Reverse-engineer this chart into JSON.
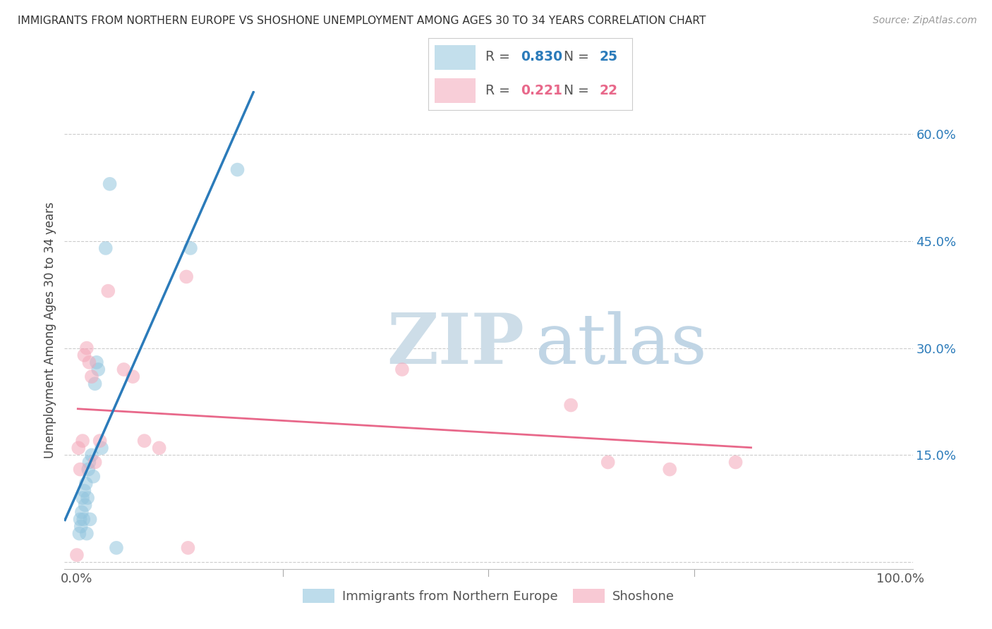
{
  "title": "IMMIGRANTS FROM NORTHERN EUROPE VS SHOSHONE UNEMPLOYMENT AMONG AGES 30 TO 34 YEARS CORRELATION CHART",
  "source": "Source: ZipAtlas.com",
  "ylabel": "Unemployment Among Ages 30 to 34 years",
  "legend_blue_r": "0.830",
  "legend_blue_n": "25",
  "legend_pink_r": "0.221",
  "legend_pink_n": "22",
  "legend_label_blue": "Immigrants from Northern Europe",
  "legend_label_pink": "Shoshone",
  "xlim": [
    -0.015,
    1.015
  ],
  "ylim": [
    -0.01,
    0.66
  ],
  "xtick_vals": [
    0.0,
    0.25,
    0.5,
    0.75,
    1.0
  ],
  "xtick_labels": [
    "0.0%",
    "",
    "",
    "",
    "100.0%"
  ],
  "ytick_vals": [
    0.0,
    0.15,
    0.3,
    0.45,
    0.6
  ],
  "ytick_labels": [
    "",
    "15.0%",
    "30.0%",
    "45.0%",
    "60.0%"
  ],
  "blue_fill": "#92c5de",
  "pink_fill": "#f4a6b8",
  "blue_line": "#2b7bba",
  "pink_line": "#e8688a",
  "blue_x": [
    0.003,
    0.004,
    0.005,
    0.006,
    0.007,
    0.008,
    0.009,
    0.01,
    0.011,
    0.012,
    0.013,
    0.014,
    0.015,
    0.016,
    0.018,
    0.02,
    0.022,
    0.024,
    0.026,
    0.03,
    0.035,
    0.04,
    0.048,
    0.138,
    0.195
  ],
  "blue_y": [
    0.04,
    0.06,
    0.05,
    0.07,
    0.09,
    0.06,
    0.1,
    0.08,
    0.11,
    0.04,
    0.09,
    0.13,
    0.14,
    0.06,
    0.15,
    0.12,
    0.25,
    0.28,
    0.27,
    0.16,
    0.44,
    0.53,
    0.02,
    0.44,
    0.55
  ],
  "pink_x": [
    0.0,
    0.004,
    0.007,
    0.009,
    0.012,
    0.015,
    0.018,
    0.022,
    0.028,
    0.038,
    0.057,
    0.068,
    0.082,
    0.1,
    0.135,
    0.395,
    0.6,
    0.645,
    0.72,
    0.8,
    0.133,
    0.002
  ],
  "pink_y": [
    0.01,
    0.13,
    0.17,
    0.29,
    0.3,
    0.28,
    0.26,
    0.14,
    0.17,
    0.38,
    0.27,
    0.26,
    0.17,
    0.16,
    0.02,
    0.27,
    0.22,
    0.14,
    0.13,
    0.14,
    0.4,
    0.16
  ],
  "bg": "#ffffff",
  "grid_color": "#cccccc",
  "grid_style": "--"
}
